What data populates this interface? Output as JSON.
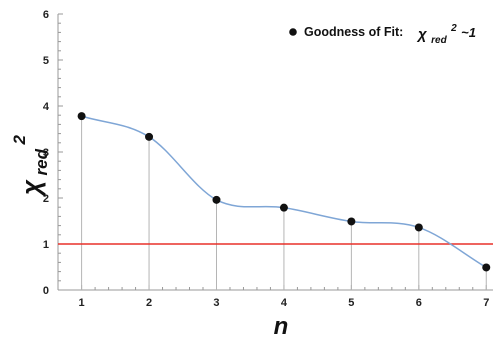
{
  "chart_data": {
    "type": "scatter",
    "xlabel": "n",
    "ylabel_main": "χ",
    "ylabel_sub": "red",
    "ylabel_sup": "2",
    "x": [
      1,
      2,
      3,
      4,
      5,
      6,
      7
    ],
    "series": [
      {
        "name": "Goodness of Fit:",
        "values": [
          3.78,
          3.33,
          1.96,
          1.79,
          1.49,
          1.36,
          0.49
        ]
      }
    ],
    "smooth_curve": true,
    "reference_line": {
      "y": 1
    },
    "xlim": [
      0.65,
      7.1
    ],
    "ylim": [
      0,
      6
    ],
    "x_ticks": [
      "1",
      "2",
      "3",
      "4",
      "5",
      "6",
      "7"
    ],
    "y_ticks": [
      "0",
      "1",
      "2",
      "3",
      "4",
      "5",
      "6"
    ],
    "legend": {
      "label": "Goodness of Fit:",
      "formula_main": "χ",
      "formula_sub": "red",
      "formula_sup": "2",
      "formula_tail": " ~1",
      "placement": "top-right"
    },
    "colors": {
      "points": "#111111",
      "curve": "#7fa6d6",
      "reference": "#e8302a",
      "droplines": "#b5b5b5",
      "axes": "#999999"
    }
  }
}
